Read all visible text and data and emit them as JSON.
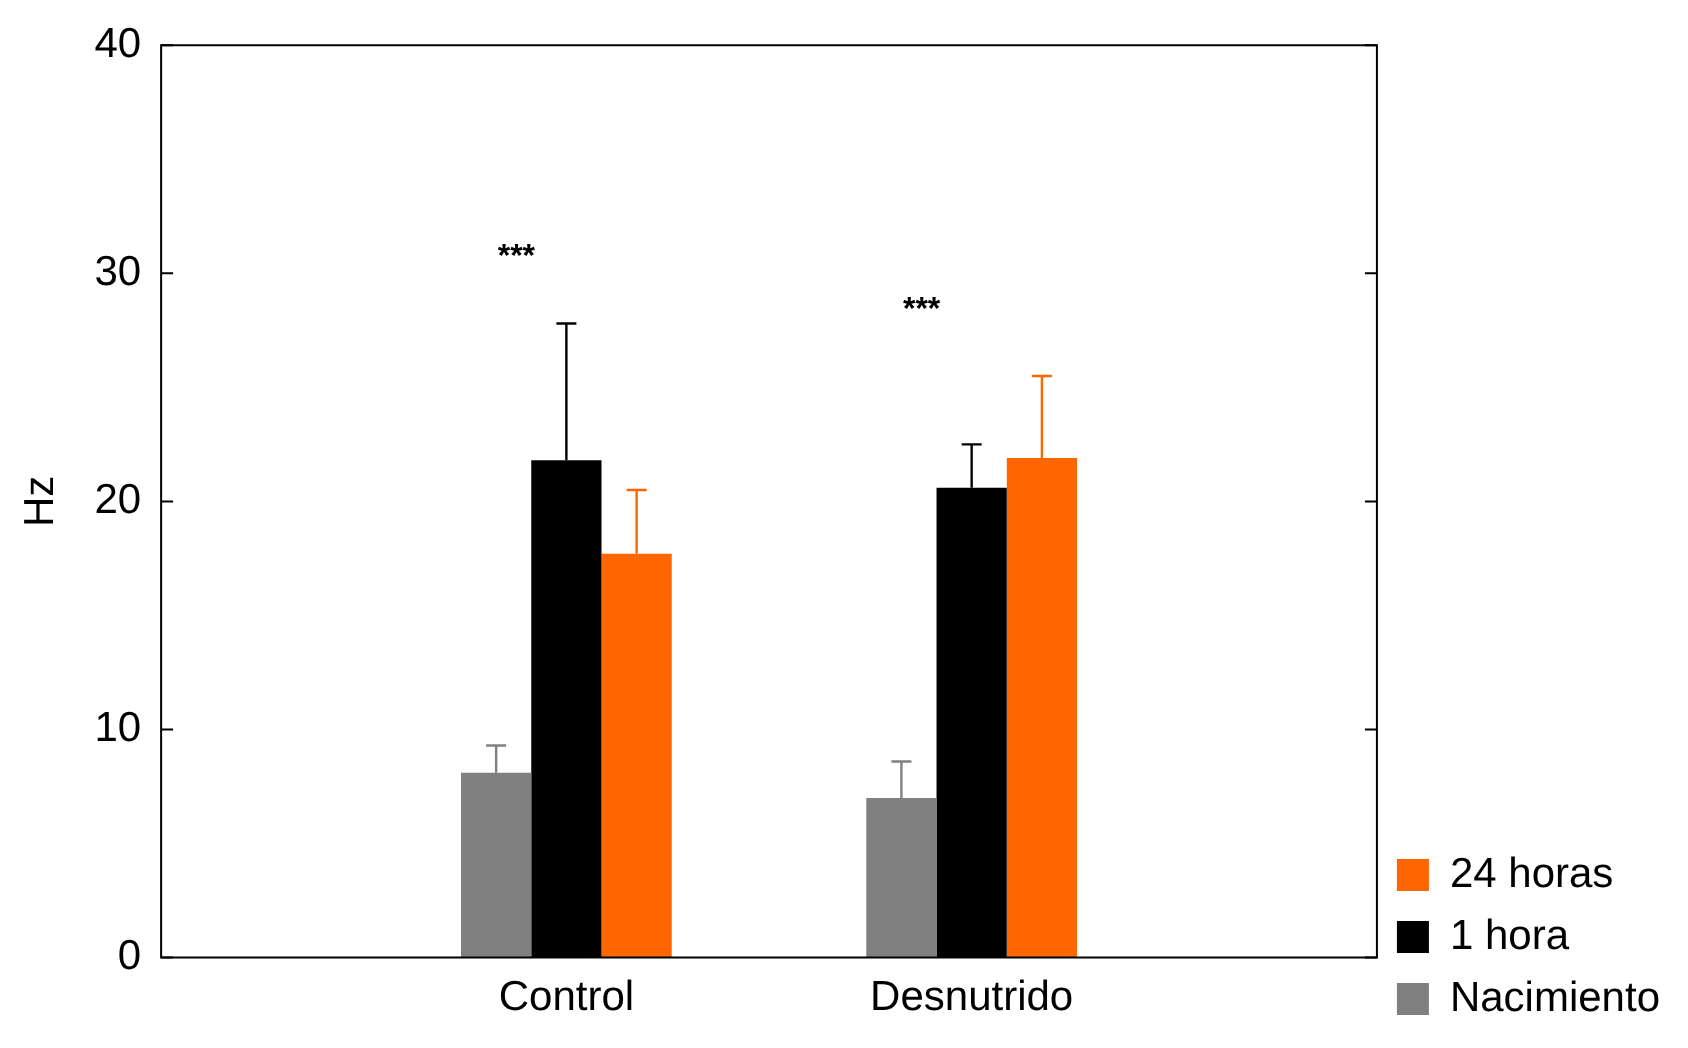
{
  "chart_data": {
    "type": "bar",
    "ylabel": "Hz",
    "categories": [
      "Control",
      "Desnutrido"
    ],
    "series": [
      {
        "name": "Nacimiento",
        "color": "#808080",
        "values": [
          8.1,
          7.0
        ],
        "errors": [
          [
            8.1,
            9.3
          ],
          [
            7.0,
            8.6
          ]
        ]
      },
      {
        "name": "1 hora",
        "color": "#000000",
        "values": [
          21.8,
          20.6
        ],
        "errors": [
          [
            21.8,
            27.8
          ],
          [
            20.6,
            22.5
          ]
        ]
      },
      {
        "name": "24 horas",
        "color": "#ff6600",
        "values": [
          17.7,
          21.9
        ],
        "errors": [
          [
            17.7,
            20.5
          ],
          [
            21.9,
            25.5
          ]
        ]
      }
    ],
    "ylim": [
      0,
      40
    ],
    "yticks": [
      0,
      10,
      20,
      30,
      40
    ],
    "grid": false,
    "legend": "bottom right",
    "annotations": [
      "***",
      "***"
    ]
  }
}
